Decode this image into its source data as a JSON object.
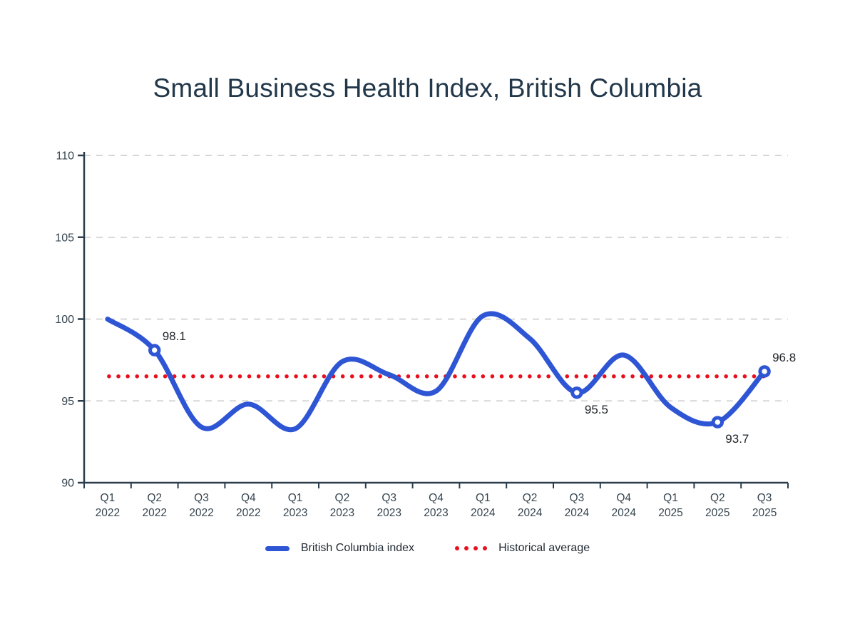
{
  "chart_data": {
    "type": "line",
    "title": "Small Business Health Index, British Columbia",
    "categories": [
      "Q1 2022",
      "Q2 2022",
      "Q3 2022",
      "Q4 2022",
      "Q1 2023",
      "Q2 2023",
      "Q3 2023",
      "Q4 2023",
      "Q1 2024",
      "Q2 2024",
      "Q3 2024",
      "Q4 2024",
      "Q1 2025",
      "Q2 2025",
      "Q3 2025"
    ],
    "series": [
      {
        "name": "British Columbia index",
        "values": [
          100.0,
          98.1,
          93.4,
          94.8,
          93.3,
          97.4,
          96.6,
          95.6,
          100.2,
          98.8,
          95.5,
          97.8,
          94.6,
          93.7,
          96.8
        ]
      }
    ],
    "historical_average": {
      "name": "Historical average",
      "value": 96.5
    },
    "annotated_points": [
      {
        "index": 1,
        "label": "98.1",
        "position": "above"
      },
      {
        "index": 10,
        "label": "95.5",
        "position": "below"
      },
      {
        "index": 13,
        "label": "93.7",
        "position": "below"
      },
      {
        "index": 14,
        "label": "96.8",
        "position": "above"
      }
    ],
    "ylim": [
      90,
      110
    ],
    "yticks": [
      90,
      95,
      100,
      105,
      110
    ],
    "grid": "horizontal-dashed",
    "legend_position": "bottom",
    "colors": {
      "line": "#2e55d4",
      "average": "#e8101e",
      "grid": "#c9c9c9",
      "axis": "#2c3e4e",
      "tick_label": "#36454f",
      "point_label": "#1f2428",
      "title": "#22384a",
      "marker_fill": "#ffffff"
    }
  }
}
